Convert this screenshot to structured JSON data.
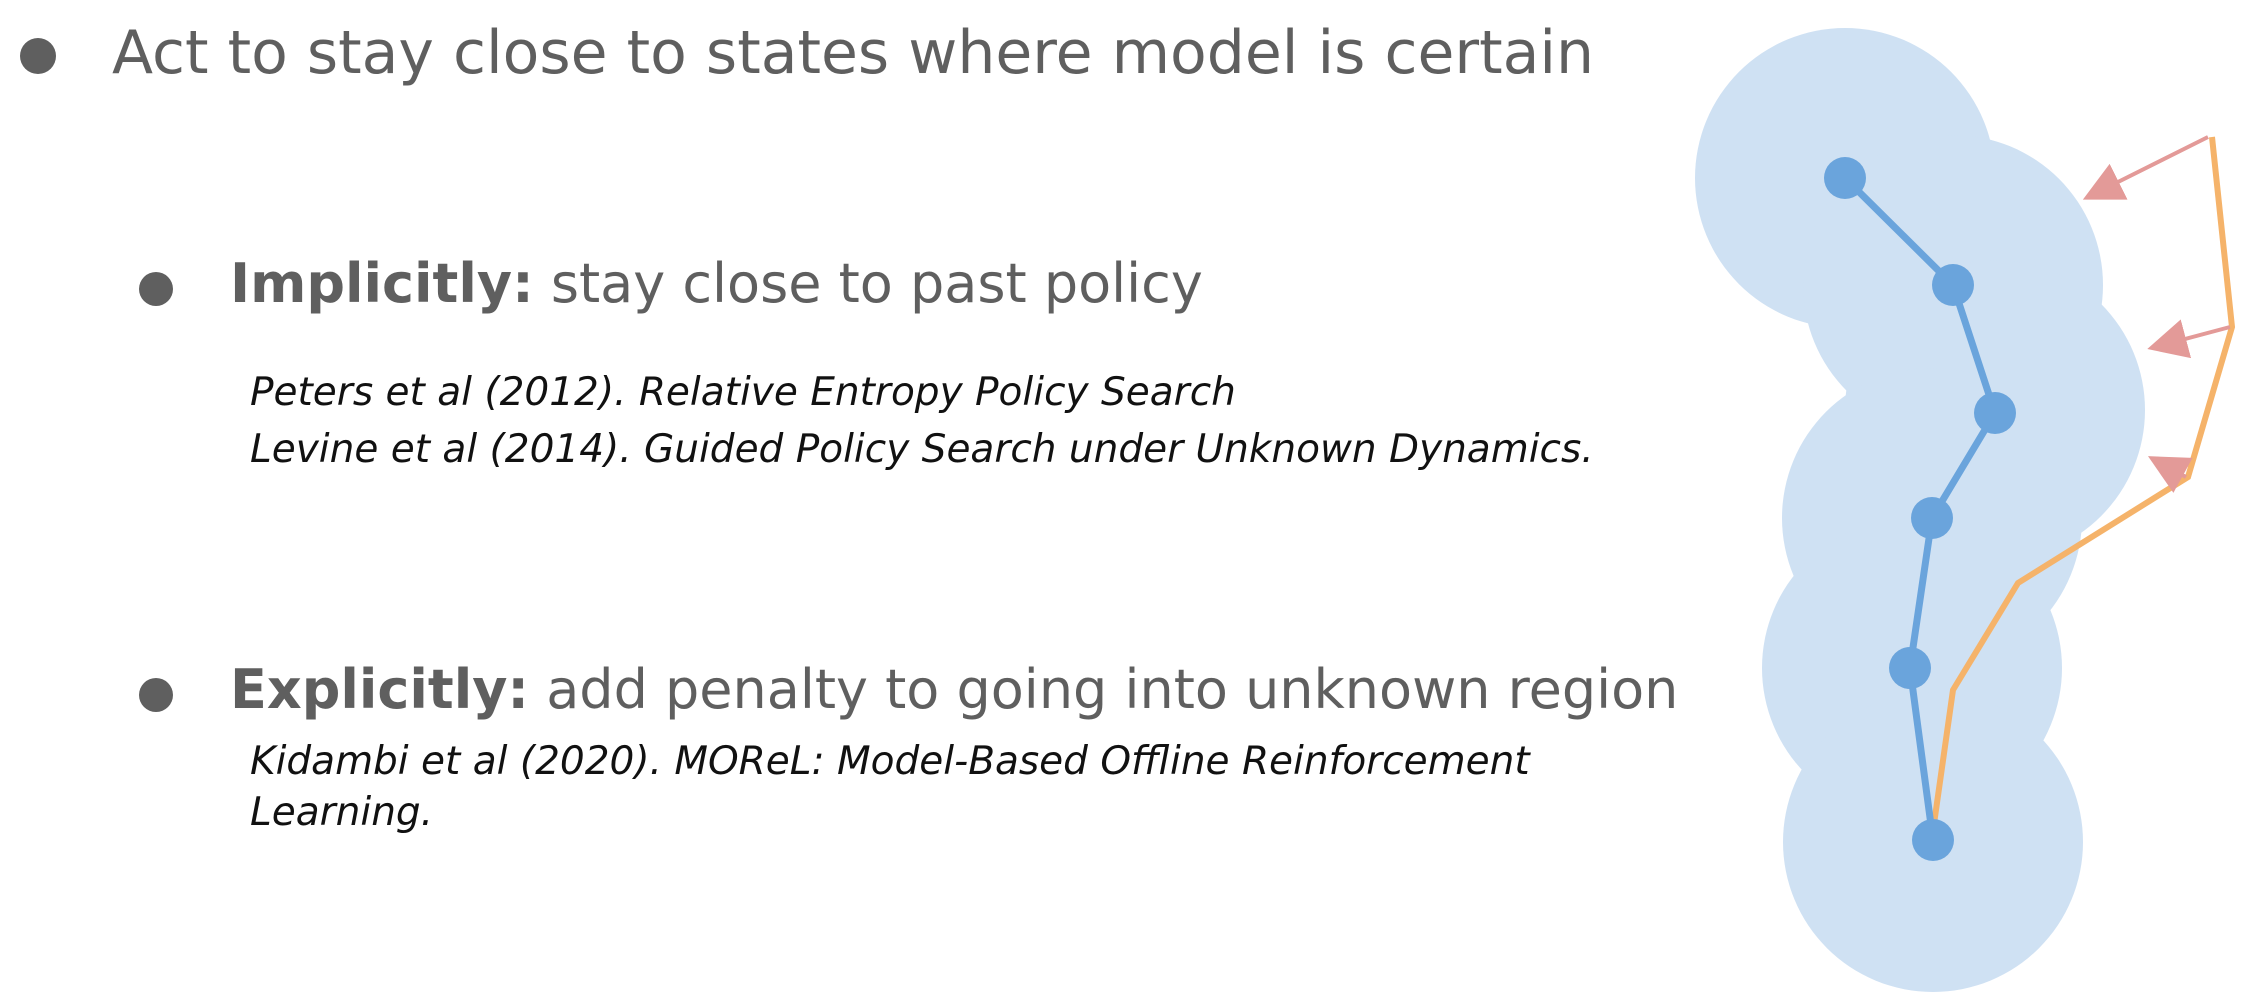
{
  "main_bullet": {
    "text": "Act to stay close to states where model is certain"
  },
  "implicit": {
    "term": "Implicitly:",
    "text": " stay close to past policy",
    "references": [
      "Peters et al (2012). Relative Entropy Policy Search",
      "Levine et al (2014). Guided Policy Search under Unknown Dynamics."
    ]
  },
  "explicit": {
    "term": "Explicitly:",
    "text": " add penalty to going into unknown region",
    "references": [
      "Kidambi et al (2020). MOReL: Model-Based Offline Reinforcement",
      "Learning."
    ]
  },
  "colors": {
    "text": "#5f5f5f",
    "reference_text": "#111111",
    "certainty_region": "#cfe1f3",
    "data_trajectory": "#6aa4dc",
    "policy_trajectory": "#f5b36a",
    "penalty_arrow": "#e39a98"
  }
}
